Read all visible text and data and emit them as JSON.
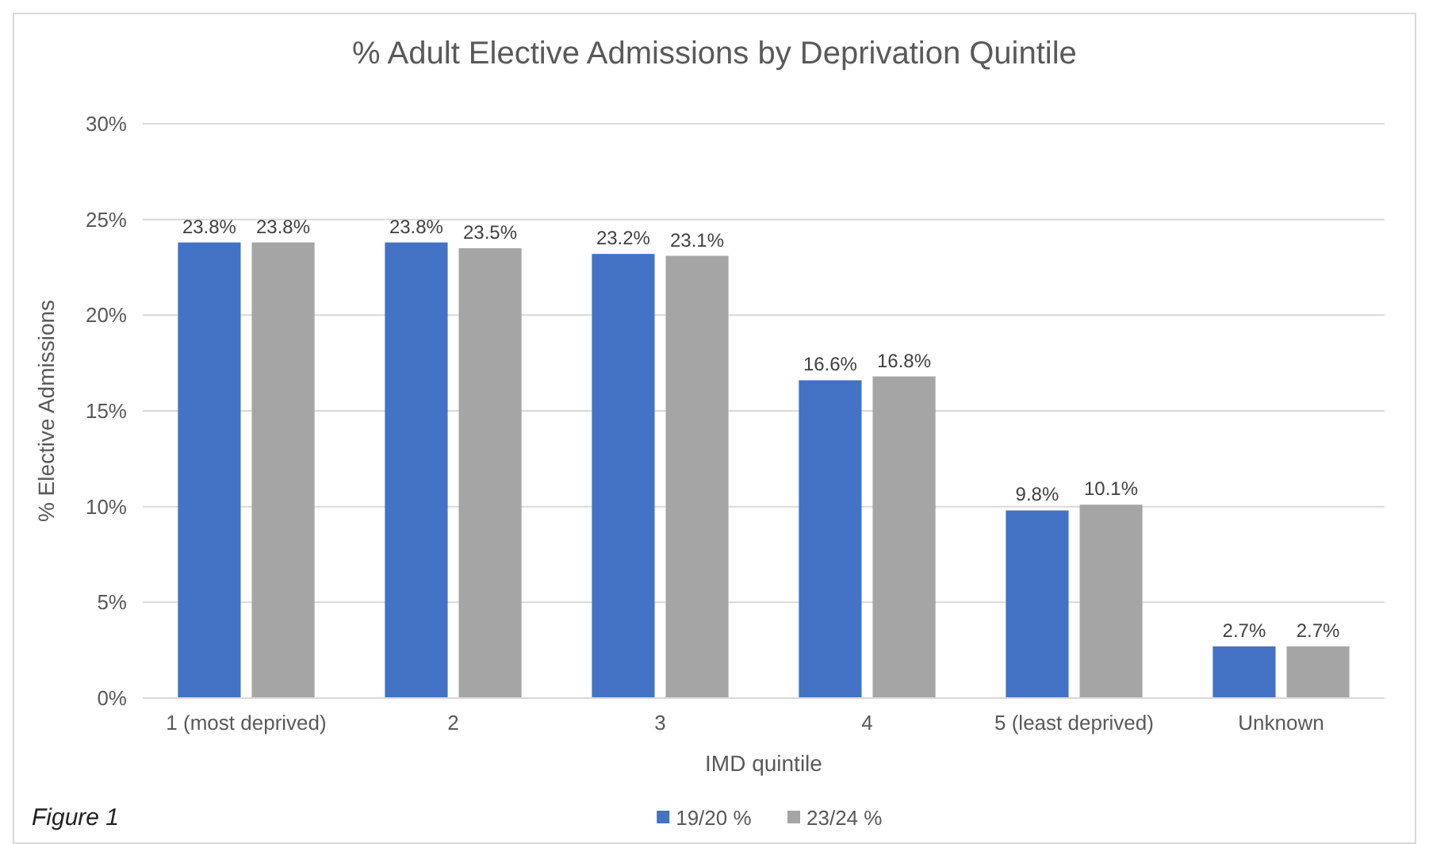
{
  "chart_data": {
    "type": "bar",
    "title": "% Adult Elective Admissions by Deprivation Quintile",
    "xlabel": "IMD quintile",
    "ylabel": "% Elective Admissions",
    "annotations": [
      "Figure 1"
    ],
    "categories": [
      "1 (most deprived)",
      "2",
      "3",
      "4",
      "5 (least deprived)",
      "Unknown"
    ],
    "series": [
      {
        "name": "19/20 %",
        "color": "#4472c4",
        "values": [
          23.8,
          23.8,
          23.2,
          16.6,
          9.8,
          2.7
        ],
        "value_labels": [
          "23.8%",
          "23.8%",
          "23.2%",
          "16.6%",
          "9.8%",
          "2.7%"
        ]
      },
      {
        "name": "23/24 %",
        "color": "#a5a5a5",
        "values": [
          23.8,
          23.5,
          23.1,
          16.8,
          10.1,
          2.7
        ],
        "value_labels": [
          "23.8%",
          "23.5%",
          "23.1%",
          "16.8%",
          "10.1%",
          "2.7%"
        ]
      }
    ],
    "ylim": [
      0,
      30
    ],
    "yticks": [
      {
        "value": 0,
        "label": "0%"
      },
      {
        "value": 5,
        "label": "5%"
      },
      {
        "value": 10,
        "label": "10%"
      },
      {
        "value": 15,
        "label": "15%"
      },
      {
        "value": 20,
        "label": "20%"
      },
      {
        "value": 25,
        "label": "25%"
      },
      {
        "value": 30,
        "label": "30%"
      }
    ],
    "grid": "y",
    "legend": "bottom"
  }
}
